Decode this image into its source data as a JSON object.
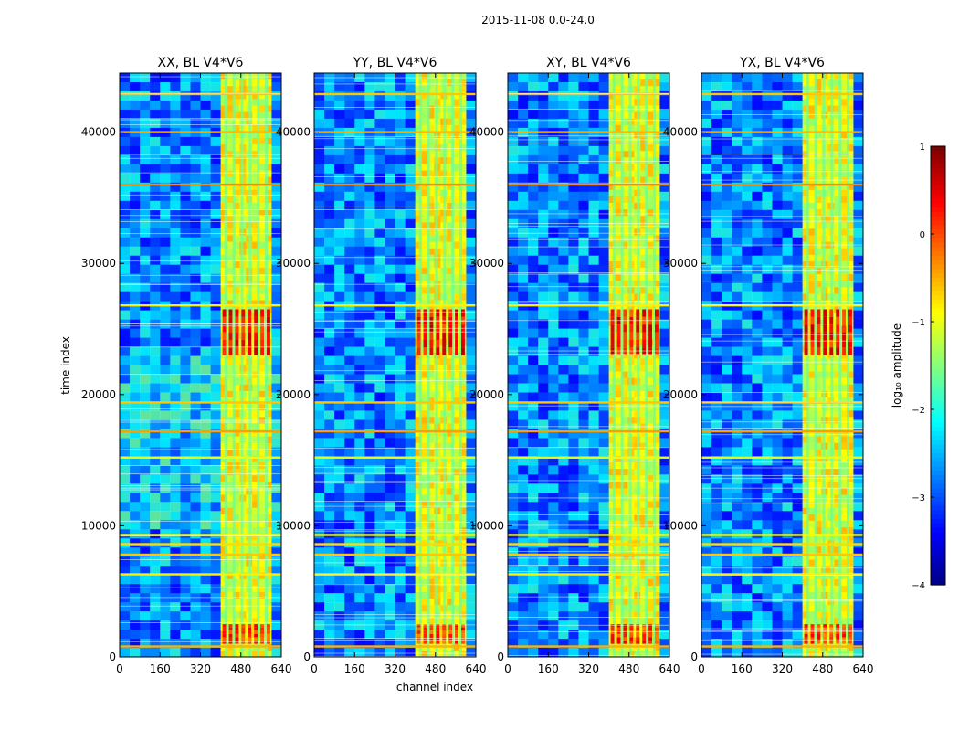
{
  "figure": {
    "suptitle": "2015-11-08 0.0-24.0",
    "xlabel": "channel index",
    "ylabel": "time index"
  },
  "chart_data": {
    "type": "heatmap",
    "colormap": "jet",
    "x_range": [
      0,
      640
    ],
    "y_range": [
      0,
      44500
    ],
    "x_ticks": [
      0,
      160,
      320,
      480,
      640
    ],
    "y_ticks": [
      0,
      10000,
      20000,
      30000,
      40000
    ],
    "panels": [
      {
        "title": "XX, BL V4*V6"
      },
      {
        "title": "YY, BL V4*V6"
      },
      {
        "title": "XY, BL V4*V6"
      },
      {
        "title": "YX, BL V4*V6"
      }
    ],
    "colorbar": {
      "label": "log₁₀ amplitude",
      "range": [
        -4,
        1
      ],
      "ticks": [
        1,
        0,
        -1,
        -2,
        -3,
        -4
      ],
      "tick_labels": [
        "1",
        "0",
        "−1",
        "−2",
        "−3",
        "−4"
      ]
    },
    "features": {
      "band_channels": [
        400,
        600
      ],
      "band_level": -1.0,
      "hot_spot_rows": [
        {
          "time": [
            23000,
            26500
          ],
          "level": 0.2
        },
        {
          "time": [
            1000,
            2500
          ],
          "level": 0.0
        }
      ],
      "horizontal_stripes": [
        {
          "time": 800,
          "level": -0.5
        },
        {
          "time": 6300,
          "level": -0.8
        },
        {
          "time": 7800,
          "level": -0.6
        },
        {
          "time": 8600,
          "level": -0.7
        },
        {
          "time": 9300,
          "level": -0.9
        },
        {
          "time": 15200,
          "level": -1.0
        },
        {
          "time": 17200,
          "level": -0.4
        },
        {
          "time": 19400,
          "level": -0.6
        },
        {
          "time": 26800,
          "level": -0.8
        },
        {
          "time": 36000,
          "level": -0.3
        },
        {
          "time": 40000,
          "level": -0.5
        },
        {
          "time": 42900,
          "level": -0.6
        }
      ]
    }
  }
}
